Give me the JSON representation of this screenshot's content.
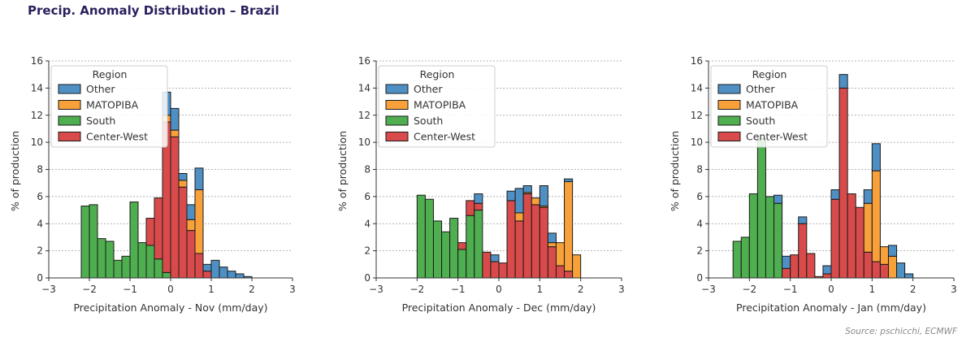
{
  "title": "Precip. Anomaly Distribution – Brazil",
  "source": "Source: pschicchi, ECMWF",
  "colors": {
    "Other": "#4f90c4",
    "MATOPIBA": "#f8a03a",
    "South": "#4fae4f",
    "Center-West": "#d94b4b"
  },
  "chart_data": [
    {
      "type": "bar",
      "subtype": "stacked-histogram",
      "xlabel": "Precipitation Anomaly - Nov (mm/day)",
      "ylabel": "% of production",
      "xlim": [
        -3,
        3
      ],
      "ylim": [
        0,
        16
      ],
      "xticks": [
        -3,
        -2,
        -1,
        0,
        1,
        2,
        3
      ],
      "yticks": [
        0,
        2,
        4,
        6,
        8,
        10,
        12,
        14,
        16
      ],
      "bin_width": 0.2,
      "legend": {
        "title": "Region",
        "entries": [
          "Other",
          "MATOPIBA",
          "South",
          "Center-West"
        ],
        "position": "upper-left"
      },
      "bins": [
        {
          "x": -2.1,
          "South": 5.3
        },
        {
          "x": -1.9,
          "South": 5.4
        },
        {
          "x": -1.7,
          "South": 2.9
        },
        {
          "x": -1.5,
          "South": 2.7
        },
        {
          "x": -1.3,
          "South": 1.3
        },
        {
          "x": -1.1,
          "South": 1.6
        },
        {
          "x": -0.9,
          "South": 5.6
        },
        {
          "x": -0.7,
          "South": 2.6
        },
        {
          "x": -0.5,
          "South": 2.4,
          "Center-West": 2.0
        },
        {
          "x": -0.3,
          "South": 1.4,
          "Center-West": 4.5
        },
        {
          "x": -0.1,
          "South": 0.4,
          "Center-West": 11.1,
          "MATOPIBA": 0.5,
          "Other": 1.7
        },
        {
          "x": 0.1,
          "Center-West": 10.4,
          "MATOPIBA": 0.5,
          "Other": 1.6
        },
        {
          "x": 0.3,
          "Center-West": 6.7,
          "MATOPIBA": 0.5,
          "Other": 0.5
        },
        {
          "x": 0.5,
          "Center-West": 3.5,
          "MATOPIBA": 0.8,
          "Other": 1.1
        },
        {
          "x": 0.7,
          "Center-West": 1.8,
          "MATOPIBA": 4.7,
          "Other": 1.6
        },
        {
          "x": 0.9,
          "Center-West": 0.5,
          "Other": 0.5
        },
        {
          "x": 1.1,
          "Other": 1.3
        },
        {
          "x": 1.3,
          "Other": 0.8
        },
        {
          "x": 1.5,
          "Other": 0.5
        },
        {
          "x": 1.7,
          "Other": 0.3
        },
        {
          "x": 1.9,
          "Other": 0.1
        }
      ]
    },
    {
      "type": "bar",
      "subtype": "stacked-histogram",
      "xlabel": "Precipitation Anomaly - Dec (mm/day)",
      "ylabel": "% of production",
      "xlim": [
        -3,
        3
      ],
      "ylim": [
        0,
        16
      ],
      "xticks": [
        -3,
        -2,
        -1,
        0,
        1,
        2,
        3
      ],
      "yticks": [
        0,
        2,
        4,
        6,
        8,
        10,
        12,
        14,
        16
      ],
      "bin_width": 0.2,
      "legend": {
        "title": "Region",
        "entries": [
          "Other",
          "MATOPIBA",
          "South",
          "Center-West"
        ],
        "position": "upper-left"
      },
      "bins": [
        {
          "x": -1.9,
          "South": 6.1
        },
        {
          "x": -1.7,
          "South": 5.8
        },
        {
          "x": -1.5,
          "South": 4.2
        },
        {
          "x": -1.3,
          "South": 3.4
        },
        {
          "x": -1.1,
          "South": 4.4
        },
        {
          "x": -0.9,
          "South": 2.1,
          "Center-West": 0.5
        },
        {
          "x": -0.7,
          "South": 4.6,
          "Center-West": 1.1
        },
        {
          "x": -0.5,
          "South": 5.0,
          "Center-West": 0.5,
          "Other": 0.7
        },
        {
          "x": -0.3,
          "Center-West": 1.9
        },
        {
          "x": -0.1,
          "Center-West": 1.2,
          "Other": 0.5
        },
        {
          "x": 0.1,
          "Center-West": 1.1
        },
        {
          "x": 0.3,
          "Center-West": 5.7,
          "Other": 0.7
        },
        {
          "x": 0.5,
          "Center-West": 4.2,
          "MATOPIBA": 0.6,
          "Other": 1.8
        },
        {
          "x": 0.7,
          "Center-West": 6.2,
          "MATOPIBA": 0.1,
          "Other": 0.5
        },
        {
          "x": 0.9,
          "Center-West": 5.4,
          "MATOPIBA": 0.5
        },
        {
          "x": 1.1,
          "Center-West": 5.2,
          "MATOPIBA": 0.1,
          "Other": 1.5
        },
        {
          "x": 1.3,
          "Center-West": 2.3,
          "MATOPIBA": 0.3,
          "Other": 0.7
        },
        {
          "x": 1.5,
          "Center-West": 0.9,
          "MATOPIBA": 1.7
        },
        {
          "x": 1.7,
          "Center-West": 0.5,
          "MATOPIBA": 6.6,
          "Other": 0.2
        },
        {
          "x": 1.9,
          "MATOPIBA": 1.7
        }
      ]
    },
    {
      "type": "bar",
      "subtype": "stacked-histogram",
      "xlabel": "Precipitation Anomaly - Jan (mm/day)",
      "ylabel": "% of production",
      "xlim": [
        -3,
        3
      ],
      "ylim": [
        0,
        16
      ],
      "xticks": [
        -3,
        -2,
        -1,
        0,
        1,
        2,
        3
      ],
      "yticks": [
        0,
        2,
        4,
        6,
        8,
        10,
        12,
        14,
        16
      ],
      "bin_width": 0.2,
      "legend": {
        "title": "Region",
        "entries": [
          "Other",
          "MATOPIBA",
          "South",
          "Center-West"
        ],
        "position": "upper-left"
      },
      "bins": [
        {
          "x": -2.3,
          "South": 2.7
        },
        {
          "x": -2.1,
          "South": 3.0
        },
        {
          "x": -1.9,
          "South": 6.2
        },
        {
          "x": -1.7,
          "South": 10.3
        },
        {
          "x": -1.5,
          "South": 6.0
        },
        {
          "x": -1.3,
          "South": 5.5,
          "Other": 0.6
        },
        {
          "x": -1.1,
          "Center-West": 0.7,
          "Other": 0.9
        },
        {
          "x": -0.9,
          "Center-West": 1.7
        },
        {
          "x": -0.7,
          "Center-West": 4.0,
          "Other": 0.5
        },
        {
          "x": -0.5,
          "Center-West": 1.8
        },
        {
          "x": -0.3,
          "Center-West": 0.1
        },
        {
          "x": -0.1,
          "Center-West": 0.3,
          "Other": 0.6
        },
        {
          "x": 0.1,
          "Center-West": 5.8,
          "Other": 0.7
        },
        {
          "x": 0.3,
          "Center-West": 14.0,
          "Other": 1.0
        },
        {
          "x": 0.5,
          "Center-West": 6.2
        },
        {
          "x": 0.7,
          "Center-West": 5.2
        },
        {
          "x": 0.9,
          "Center-West": 1.9,
          "MATOPIBA": 3.6,
          "Other": 1.0
        },
        {
          "x": 1.1,
          "Center-West": 1.2,
          "MATOPIBA": 6.7,
          "Other": 2.0
        },
        {
          "x": 1.3,
          "Center-West": 1.0,
          "MATOPIBA": 1.3
        },
        {
          "x": 1.5,
          "MATOPIBA": 1.6,
          "Other": 0.8
        },
        {
          "x": 1.7,
          "Other": 1.1
        },
        {
          "x": 1.9,
          "Other": 0.3
        }
      ]
    }
  ]
}
